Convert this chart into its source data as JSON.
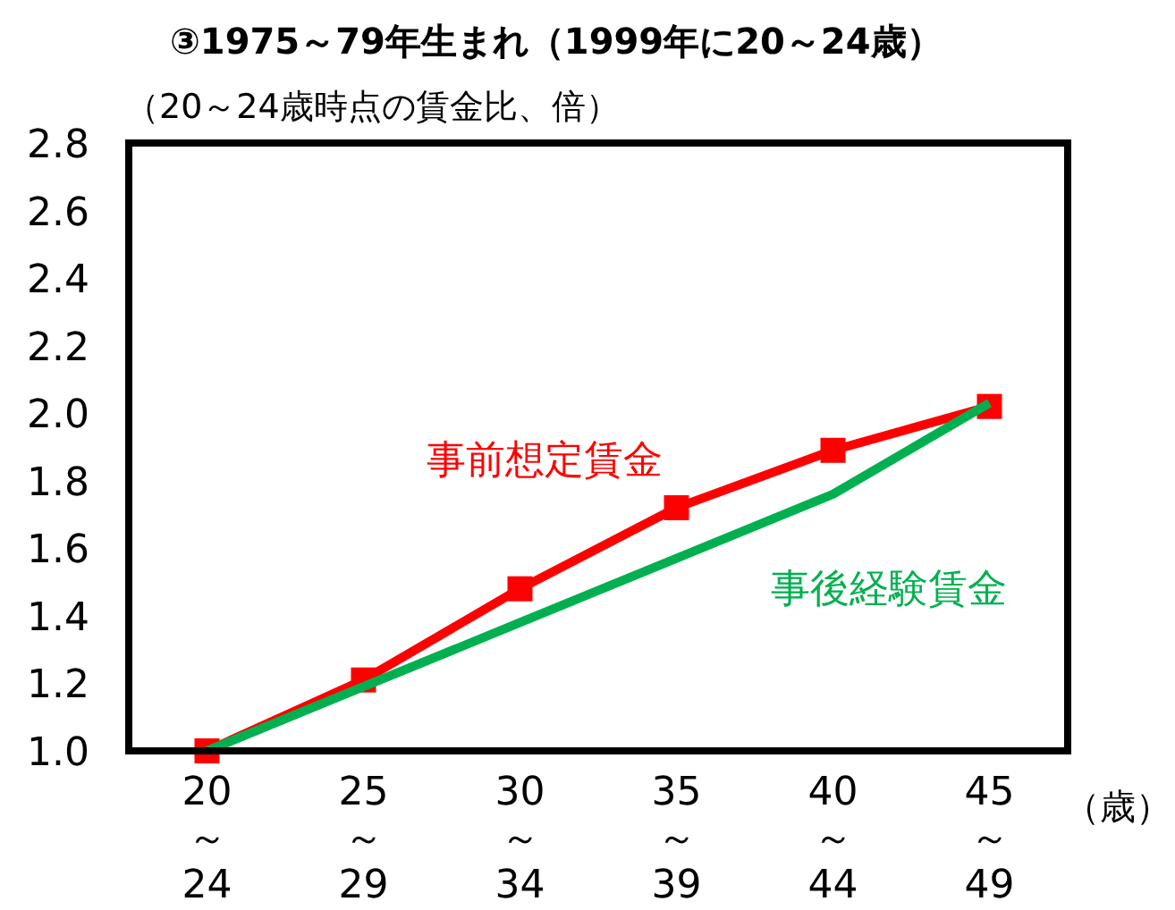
{
  "chart_data": {
    "type": "line",
    "title": "③1975～79年生まれ（1999年に20～24歳）",
    "ylabel": "（20～24歳時点の賃金比、倍）",
    "xlabel": "（歳）",
    "categories": [
      "20～24",
      "25～29",
      "30～34",
      "35～39",
      "40～44",
      "45～49"
    ],
    "series": [
      {
        "name": "事前想定賃金",
        "color": "#ff0000",
        "marker": "square",
        "values": [
          1.0,
          1.21,
          1.48,
          1.72,
          1.89,
          2.02
        ]
      },
      {
        "name": "事後経験賃金",
        "color": "#00b050",
        "marker": "none",
        "values": [
          1.0,
          1.19,
          1.38,
          1.57,
          1.76,
          2.03
        ]
      }
    ],
    "ylim": [
      1.0,
      2.8
    ],
    "yticks": [
      {
        "value": 1.0,
        "label": "1.0"
      },
      1.2,
      1.4,
      1.6,
      1.8,
      {
        "value": 2.0,
        "label": "2.0"
      },
      2.2,
      2.4,
      2.6,
      2.8
    ],
    "grid": false,
    "legend": false
  }
}
